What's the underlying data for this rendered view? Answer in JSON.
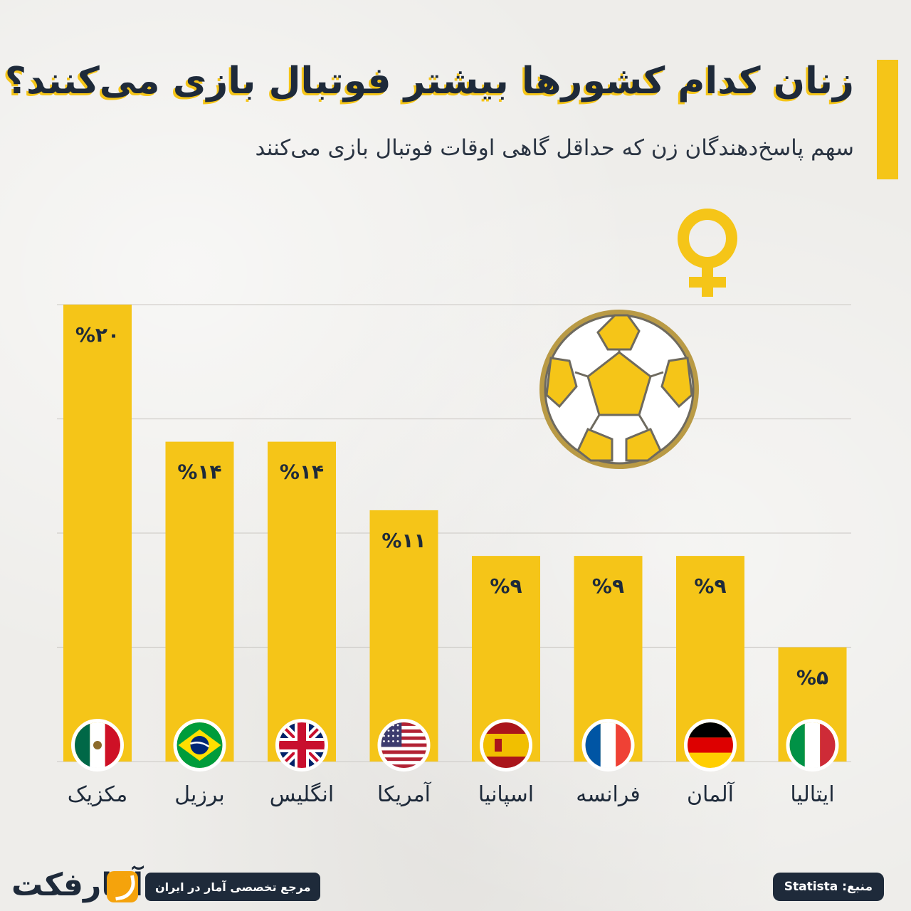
{
  "header": {
    "title": "زنان کدام کشورها بیشتر فوتبال بازی می‌کنند؟",
    "subtitle": "سهم پاسخ‌دهندگان زن که حداقل گاهی اوقات فوتبال بازی می‌کنند"
  },
  "chart_data": {
    "type": "bar",
    "categories": [
      "مکزیک",
      "برزیل",
      "انگلیس",
      "آمریکا",
      "اسپانیا",
      "فرانسه",
      "آلمان",
      "ایتالیا"
    ],
    "values": [
      20,
      14,
      14,
      11,
      9,
      9,
      9,
      5
    ],
    "value_labels": [
      "%۲۰",
      "%۱۴",
      "%۱۴",
      "%۱۱",
      "%۹",
      "%۹",
      "%۹",
      "%۵"
    ],
    "flags": [
      "mexico-flag-icon",
      "brazil-flag-icon",
      "uk-flag-icon",
      "usa-flag-icon",
      "spain-flag-icon",
      "france-flag-icon",
      "germany-flag-icon",
      "italy-flag-icon"
    ],
    "ylim": [
      0,
      20
    ],
    "grid": true,
    "colors": {
      "bar": "#f5c518",
      "text": "#1e2a3a",
      "grid": "#d2d0cc"
    }
  },
  "decor": {
    "ball_icon": "soccer-ball-icon",
    "symbol_icon": "female-symbol-icon"
  },
  "footer": {
    "source": "منبع: Statista",
    "tagline": "مرجع تخصصی آمار در ایران",
    "logo_text": "آمارفکت"
  }
}
